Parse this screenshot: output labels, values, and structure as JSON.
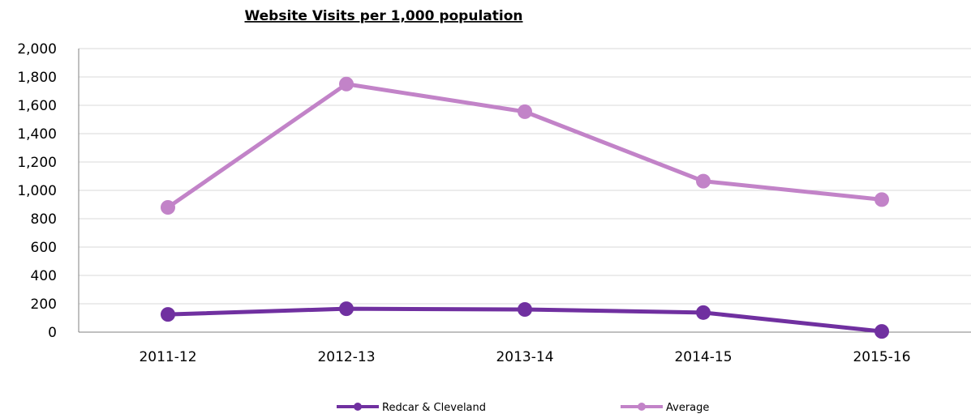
{
  "chart_data": {
    "type": "line",
    "title": "Website Visits per 1,000 population",
    "xlabel": "",
    "ylabel": "",
    "categories": [
      "2011-12",
      "2012-13",
      "2013-14",
      "2014-15",
      "2015-16"
    ],
    "ylim": [
      0,
      2000
    ],
    "yticks": [
      0,
      200,
      400,
      600,
      800,
      1000,
      1200,
      1400,
      1600,
      1800,
      2000
    ],
    "ytick_labels": [
      "0",
      "200",
      "400",
      "600",
      "800",
      "1,000",
      "1,200",
      "1,400",
      "1,600",
      "1,800",
      "2,000"
    ],
    "grid": true,
    "legend_position": "bottom",
    "series": [
      {
        "name": "Redcar & Cleveland",
        "color": "#7030a0",
        "values": [
          125,
          165,
          160,
          138,
          5
        ]
      },
      {
        "name": "Average",
        "color": "#c283c8",
        "values": [
          880,
          1750,
          1555,
          1065,
          935
        ]
      }
    ]
  }
}
